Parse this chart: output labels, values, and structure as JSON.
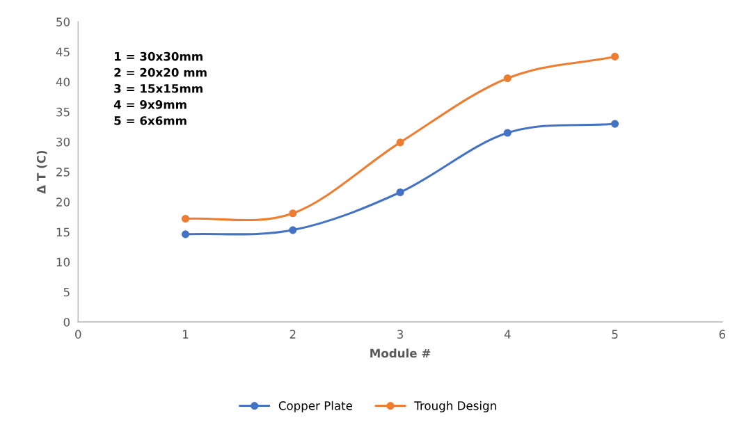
{
  "chart_data": {
    "type": "line",
    "xlabel": "Module #",
    "ylabel": "Δ T (C)",
    "x": [
      1,
      2,
      3,
      4,
      5
    ],
    "series": [
      {
        "name": "Copper Plate",
        "color": "#4472c4",
        "values": [
          14.6,
          15.3,
          21.6,
          31.5,
          33.0
        ]
      },
      {
        "name": "Trough Design",
        "color": "#ed7d31",
        "values": [
          17.2,
          18.1,
          29.9,
          40.6,
          44.2
        ]
      }
    ],
    "xlim": [
      0,
      6
    ],
    "xticks": [
      0,
      1,
      2,
      3,
      4,
      5,
      6
    ],
    "ylim": [
      0,
      50
    ],
    "yticks": [
      0,
      5,
      10,
      15,
      20,
      25,
      30,
      35,
      40,
      45,
      50
    ],
    "annotations": [
      "1 = 30x30mm\n2 = 20x20 mm\n3 = 15x15mm\n4 = 9x9mm\n5 = 6x6mm"
    ],
    "grid": false,
    "legend": "bottom",
    "marker": "circle",
    "line_style": "solid"
  }
}
